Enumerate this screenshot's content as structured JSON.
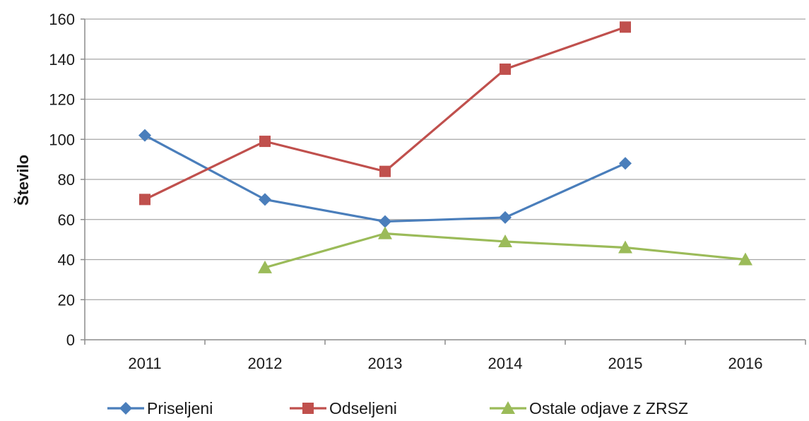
{
  "chart_data": {
    "type": "line",
    "title": "",
    "xlabel": "",
    "ylabel": "Število",
    "x": [
      "2011",
      "2012",
      "2013",
      "2014",
      "2015",
      "2016"
    ],
    "ylim": [
      0,
      160
    ],
    "yticks": [
      0,
      20,
      40,
      60,
      80,
      100,
      120,
      140,
      160
    ],
    "grid": true,
    "legend_position": "bottom",
    "series": [
      {
        "name": "Priseljeni",
        "color": "#4a7ebb",
        "marker": "diamond",
        "values": [
          102,
          70,
          59,
          61,
          88,
          null
        ]
      },
      {
        "name": "Odseljeni",
        "color": "#c0504d",
        "marker": "square",
        "values": [
          70,
          99,
          84,
          135,
          156,
          null
        ]
      },
      {
        "name": "Ostale odjave z ZRSZ",
        "color": "#9bbb59",
        "marker": "triangle",
        "values": [
          null,
          36,
          53,
          49,
          46,
          40
        ]
      }
    ]
  }
}
